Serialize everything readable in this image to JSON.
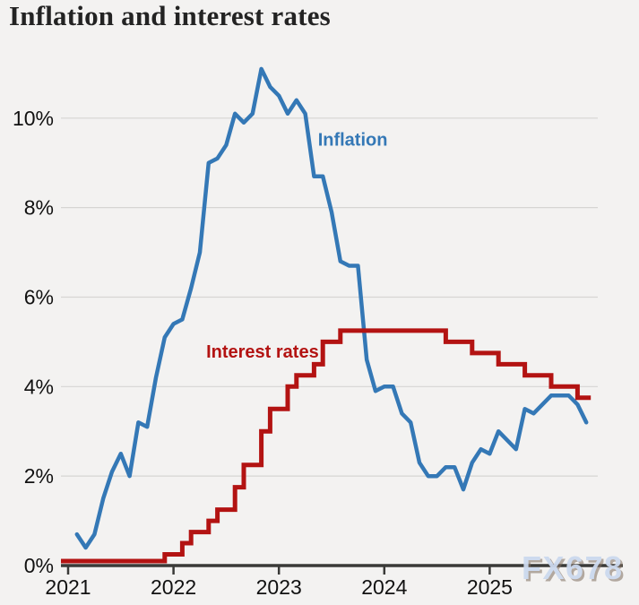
{
  "title": "Inflation and interest rates",
  "watermark": "FX678",
  "colors": {
    "background": "#f3f2f1",
    "inflation": "#3478b6",
    "interest_rates": "#b31312",
    "grid": "#d6d5d3",
    "axis": "#3a3a38",
    "tick_label": "#111111",
    "title": "#232323",
    "watermark": "#ccd9ee"
  },
  "chart_data": {
    "type": "line",
    "title": "Inflation and interest rates",
    "grid": true,
    "legend_position": "inline-annotations",
    "x_axis": {
      "ticks": [
        2021,
        2022,
        2023,
        2024,
        2025
      ]
    },
    "y_axis": {
      "unit": "%",
      "min": 0,
      "max": 11.6,
      "ticks": [
        {
          "value": 0,
          "label": "0%"
        },
        {
          "value": 2,
          "label": "2%"
        },
        {
          "value": 4,
          "label": "4%"
        },
        {
          "value": 6,
          "label": "6%"
        },
        {
          "value": 8,
          "label": "8%"
        },
        {
          "value": 10,
          "label": "10%"
        }
      ]
    },
    "series": [
      {
        "id": "inflation",
        "label": "Inflation",
        "draw": "line",
        "color": "#3478b6",
        "stroke_width": 4.5,
        "start": "2021-01",
        "frequency": "monthly",
        "x_offset_months": 1,
        "values": [
          0.7,
          0.4,
          0.7,
          1.5,
          2.1,
          2.5,
          2.0,
          3.2,
          3.1,
          4.2,
          5.1,
          5.4,
          5.5,
          6.2,
          7.0,
          9.0,
          9.1,
          9.4,
          10.1,
          9.9,
          10.1,
          11.1,
          10.7,
          10.5,
          10.1,
          10.4,
          10.1,
          8.7,
          8.7,
          7.9,
          6.8,
          6.7,
          6.7,
          4.6,
          3.9,
          4.0,
          4.0,
          3.4,
          3.2,
          2.3,
          2.0,
          2.0,
          2.2,
          2.2,
          1.7,
          2.3,
          2.6,
          2.5,
          3.0,
          2.8,
          2.6,
          3.5,
          3.4,
          3.6,
          3.8,
          3.8,
          3.8,
          3.6,
          3.2
        ]
      },
      {
        "id": "interest-rates",
        "label": "Interest rates",
        "draw": "step",
        "color": "#b31312",
        "stroke_width": 5,
        "end": "2025-12",
        "changes": [
          {
            "date": "2021-01",
            "value": 0.1
          },
          {
            "date": "2021-12",
            "value": 0.25
          },
          {
            "date": "2022-02",
            "value": 0.5
          },
          {
            "date": "2022-03",
            "value": 0.75
          },
          {
            "date": "2022-05",
            "value": 1.0
          },
          {
            "date": "2022-06",
            "value": 1.25
          },
          {
            "date": "2022-08",
            "value": 1.75
          },
          {
            "date": "2022-09",
            "value": 2.25
          },
          {
            "date": "2022-11",
            "value": 3.0
          },
          {
            "date": "2022-12",
            "value": 3.5
          },
          {
            "date": "2023-02",
            "value": 4.0
          },
          {
            "date": "2023-03",
            "value": 4.25
          },
          {
            "date": "2023-05",
            "value": 4.5
          },
          {
            "date": "2023-06",
            "value": 5.0
          },
          {
            "date": "2023-08",
            "value": 5.25
          },
          {
            "date": "2024-08",
            "value": 5.0
          },
          {
            "date": "2024-11",
            "value": 4.75
          },
          {
            "date": "2025-02",
            "value": 4.5
          },
          {
            "date": "2025-05",
            "value": 4.25
          },
          {
            "date": "2025-08",
            "value": 4.0
          },
          {
            "date": "2025-11",
            "value": 3.75
          }
        ]
      }
    ],
    "annotations": [
      {
        "series": "inflation",
        "text": "Inflation",
        "x_year": 2023.37,
        "y_pct": 9.53,
        "color": "#3478b6"
      },
      {
        "series": "interest-rates",
        "text": "Interest rates",
        "x_year": 2022.31,
        "y_pct": 4.79,
        "color": "#b31312"
      }
    ]
  }
}
